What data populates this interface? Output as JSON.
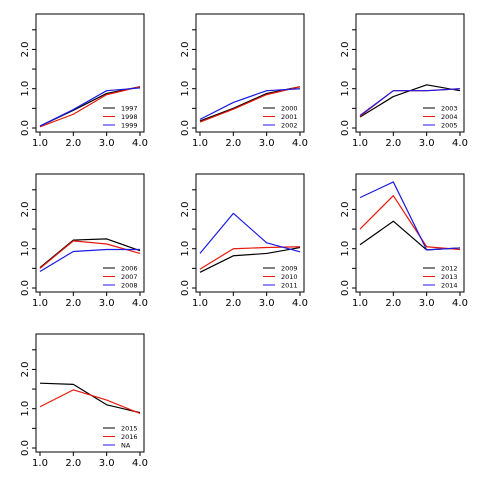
{
  "chart_data": {
    "type": "line",
    "layout": "3x3 small-multiples",
    "x_ticks": [
      "1.0",
      "2.0",
      "3.0",
      "4.0"
    ],
    "y_ticks": [
      "0.0",
      "1.0",
      "2.0"
    ],
    "xlim": [
      1,
      4
    ],
    "ylim": [
      0,
      2.8
    ],
    "grid": false,
    "legend_placement": "bottom-right",
    "series_colors": [
      "#000000",
      "#e8190b",
      "#1a1ae6"
    ],
    "panels": [
      {
        "series": [
          {
            "name": "1997",
            "x": [
              1,
              2,
              3,
              4
            ],
            "values": [
              0.05,
              0.45,
              0.88,
              1.05
            ]
          },
          {
            "name": "1998",
            "x": [
              1,
              2,
              3,
              4
            ],
            "values": [
              0.03,
              0.35,
              0.85,
              1.05
            ]
          },
          {
            "name": "1999",
            "x": [
              1,
              2,
              3,
              4
            ],
            "values": [
              0.05,
              0.47,
              0.95,
              1.02
            ]
          }
        ]
      },
      {
        "series": [
          {
            "name": "2000",
            "x": [
              1,
              2,
              3,
              4
            ],
            "values": [
              0.18,
              0.5,
              0.88,
              1.05
            ]
          },
          {
            "name": "2001",
            "x": [
              1,
              2,
              3,
              4
            ],
            "values": [
              0.15,
              0.48,
              0.85,
              1.05
            ]
          },
          {
            "name": "2002",
            "x": [
              1,
              2,
              3,
              4
            ],
            "values": [
              0.22,
              0.65,
              0.95,
              1.0
            ]
          }
        ]
      },
      {
        "series": [
          {
            "name": "2003",
            "x": [
              1,
              2,
              3,
              4
            ],
            "values": [
              0.28,
              0.8,
              1.1,
              0.95
            ]
          },
          {
            "name": "2004",
            "x": [
              1,
              2,
              3,
              4
            ],
            "values": [
              0.3,
              0.95,
              0.95,
              1.0
            ]
          },
          {
            "name": "2005",
            "x": [
              1,
              2,
              3,
              4
            ],
            "values": [
              0.32,
              0.95,
              0.95,
              1.0
            ]
          }
        ]
      },
      {
        "series": [
          {
            "name": "2006",
            "x": [
              1,
              2,
              3,
              4
            ],
            "values": [
              0.52,
              1.22,
              1.25,
              0.95
            ]
          },
          {
            "name": "2007",
            "x": [
              1,
              2,
              3,
              4
            ],
            "values": [
              0.5,
              1.2,
              1.12,
              0.88
            ]
          },
          {
            "name": "2008",
            "x": [
              1,
              2,
              3,
              4
            ],
            "values": [
              0.42,
              0.93,
              0.98,
              0.98
            ]
          }
        ]
      },
      {
        "series": [
          {
            "name": "2009",
            "x": [
              1,
              2,
              3,
              4
            ],
            "values": [
              0.4,
              0.82,
              0.88,
              1.03
            ]
          },
          {
            "name": "2010",
            "x": [
              1,
              2,
              3,
              4
            ],
            "values": [
              0.48,
              1.0,
              1.03,
              1.05
            ]
          },
          {
            "name": "2011",
            "x": [
              1,
              2,
              3,
              4
            ],
            "values": [
              0.88,
              1.9,
              1.15,
              0.92
            ]
          }
        ]
      },
      {
        "series": [
          {
            "name": "2012",
            "x": [
              1,
              2,
              3,
              4
            ],
            "values": [
              1.1,
              1.7,
              0.97,
              1.02
            ]
          },
          {
            "name": "2013",
            "x": [
              1,
              2,
              3,
              4
            ],
            "values": [
              1.5,
              2.35,
              1.05,
              0.98
            ]
          },
          {
            "name": "2014",
            "x": [
              1,
              2,
              3,
              4
            ],
            "values": [
              2.3,
              2.7,
              0.97,
              1.02
            ]
          }
        ]
      },
      {
        "series": [
          {
            "name": "2015",
            "x": [
              1,
              2,
              3,
              4
            ],
            "values": [
              1.65,
              1.62,
              1.1,
              0.9
            ]
          },
          {
            "name": "2016",
            "x": [
              1,
              2,
              3,
              4
            ],
            "values": [
              1.05,
              1.48,
              1.22,
              0.88
            ]
          },
          {
            "name": "NA",
            "x": [
              1,
              2,
              3,
              4
            ],
            "values": []
          }
        ]
      }
    ]
  }
}
